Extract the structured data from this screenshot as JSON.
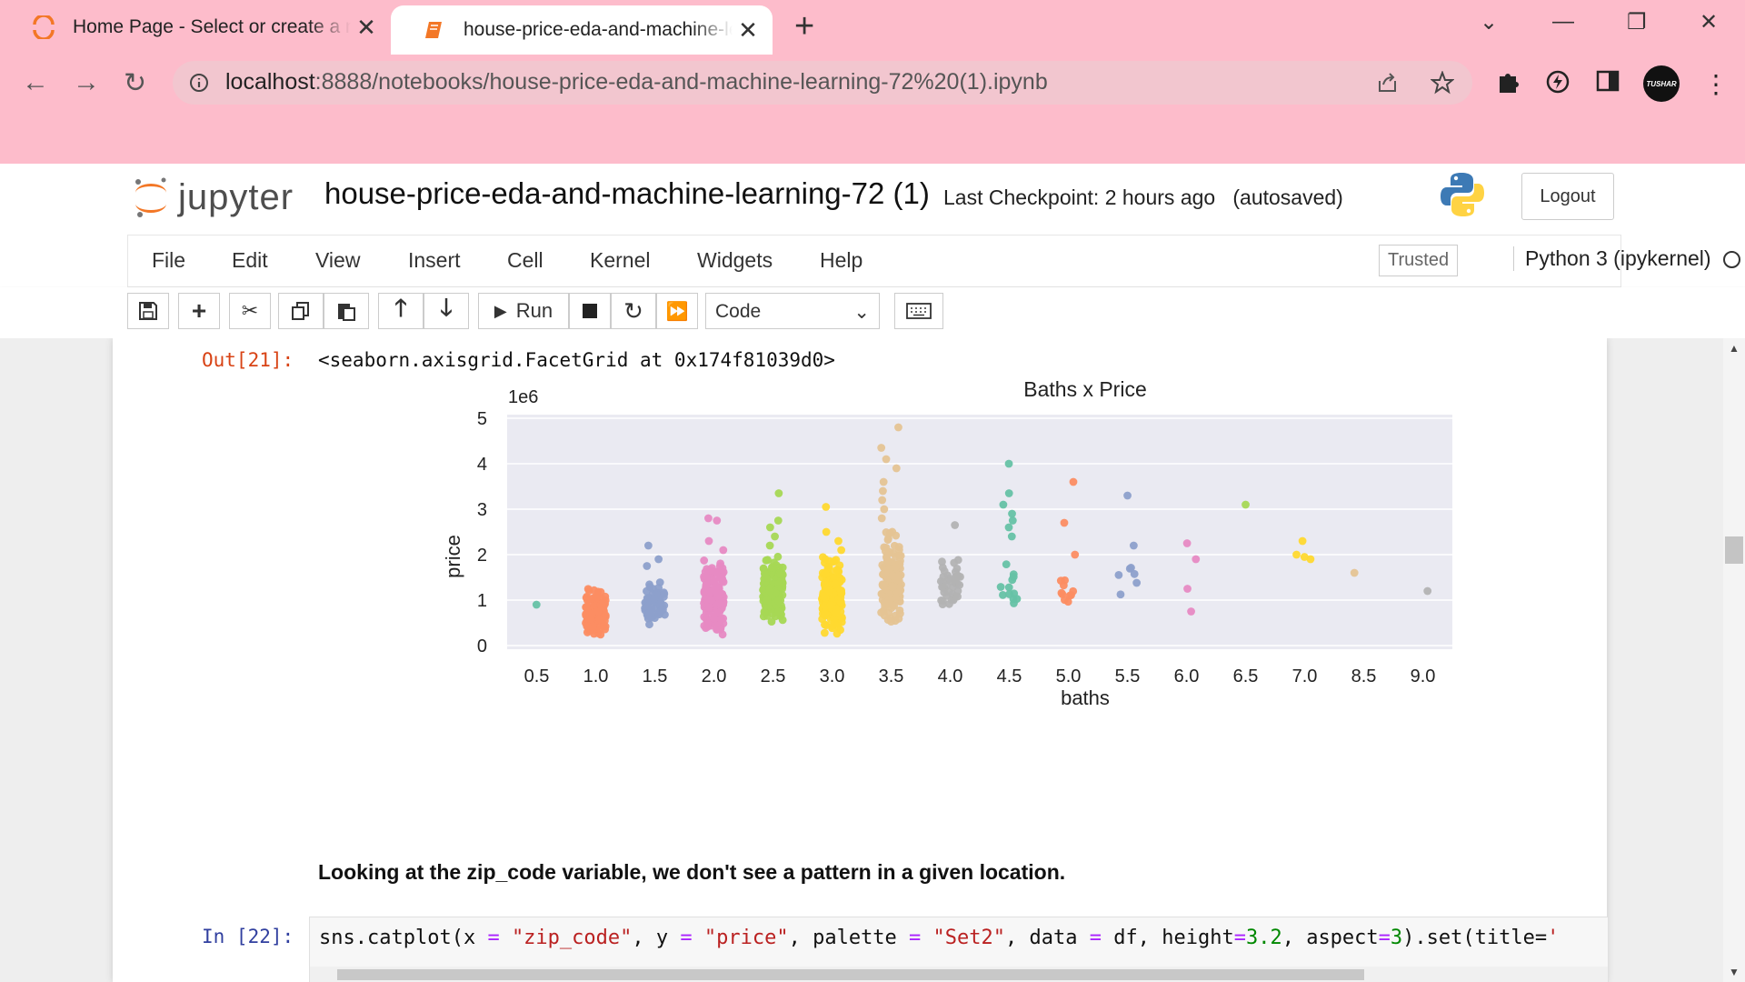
{
  "browser": {
    "tabs": [
      {
        "title": "Home Page - Select or create a n",
        "active": false
      },
      {
        "title": "house-price-eda-and-machine-le",
        "active": true
      }
    ],
    "url_host": "localhost",
    "url_rest": ":8888/notebooks/house-price-eda-and-machine-learning-72%20(1).ipynb",
    "profile_label": "TUSHAR"
  },
  "jupyter": {
    "wordmark": "jupyter",
    "notebook_name": "house-price-eda-and-machine-learning-72 (1)",
    "checkpoint": "Last Checkpoint: 2 hours ago",
    "autosave": "(autosaved)",
    "logout": "Logout",
    "menu": [
      "File",
      "Edit",
      "View",
      "Insert",
      "Cell",
      "Kernel",
      "Widgets",
      "Help"
    ],
    "trusted": "Trusted",
    "kernel": "Python 3 (ipykernel)",
    "run_label": "Run",
    "cell_type": "Code"
  },
  "cells": {
    "out_prompt": "Out[21]:",
    "out_text": "<seaborn.axisgrid.FacetGrid at 0x174f81039d0>",
    "markdown": "Looking at the zip_code variable, we don't see a pattern in a given location.",
    "in_prompt": "In [22]:",
    "code_parts": [
      {
        "t": "sns.catplot(x ",
        "c": ""
      },
      {
        "t": "=",
        "c": "op"
      },
      {
        "t": " ",
        "c": ""
      },
      {
        "t": "\"zip_code\"",
        "c": "str"
      },
      {
        "t": ", y ",
        "c": ""
      },
      {
        "t": "=",
        "c": "op"
      },
      {
        "t": " ",
        "c": ""
      },
      {
        "t": "\"price\"",
        "c": "str"
      },
      {
        "t": ", palette ",
        "c": ""
      },
      {
        "t": "=",
        "c": "op"
      },
      {
        "t": " ",
        "c": ""
      },
      {
        "t": "\"Set2\"",
        "c": "str"
      },
      {
        "t": ", data ",
        "c": ""
      },
      {
        "t": "=",
        "c": "op"
      },
      {
        "t": " df, height",
        "c": ""
      },
      {
        "t": "=",
        "c": "op"
      },
      {
        "t": "3.2",
        "c": "num"
      },
      {
        "t": ", aspect",
        "c": ""
      },
      {
        "t": "=",
        "c": "op"
      },
      {
        "t": "3",
        "c": "num"
      },
      {
        "t": ").set(title=",
        "c": ""
      },
      {
        "t": "'",
        "c": "str"
      }
    ]
  },
  "chart_data": {
    "type": "scatter",
    "title": "Baths x Price",
    "xlabel": "baths",
    "ylabel": "price",
    "y_offset_label": "1e6",
    "ylim": [
      0,
      5
    ],
    "yticks": [
      "0",
      "1",
      "2",
      "3",
      "4",
      "5"
    ],
    "grid": true,
    "categories": [
      "0.5",
      "1.0",
      "1.5",
      "2.0",
      "2.5",
      "3.0",
      "3.5",
      "4.0",
      "4.5",
      "5.0",
      "5.5",
      "6.0",
      "6.5",
      "7.0",
      "8.5",
      "9.0"
    ],
    "colors": [
      "#66c2a5",
      "#fc8d62",
      "#8da0cb",
      "#e78ac3",
      "#a6d854",
      "#ffd92f",
      "#e5c494",
      "#b3b3b3",
      "#66c2a5",
      "#fc8d62",
      "#8da0cb",
      "#e78ac3",
      "#a6d854",
      "#ffd92f",
      "#e5c494",
      "#b3b3b3"
    ],
    "series": [
      {
        "category": "0.5",
        "min": 0.9,
        "max": 0.9,
        "n": 0,
        "extras": [
          0.9
        ]
      },
      {
        "category": "1.0",
        "min": 0.2,
        "max": 1.3,
        "n": 120,
        "extras": []
      },
      {
        "category": "1.5",
        "min": 0.45,
        "max": 1.5,
        "n": 60,
        "extras": [
          1.75,
          1.9,
          2.2
        ]
      },
      {
        "category": "2.0",
        "min": 0.2,
        "max": 2.0,
        "n": 150,
        "extras": [
          2.1,
          2.3,
          2.75,
          2.8
        ]
      },
      {
        "category": "2.5",
        "min": 0.5,
        "max": 2.0,
        "n": 160,
        "extras": [
          2.2,
          2.4,
          2.6,
          2.75,
          3.35
        ]
      },
      {
        "category": "3.0",
        "min": 0.25,
        "max": 2.0,
        "n": 170,
        "extras": [
          2.1,
          2.3,
          2.5,
          3.05
        ]
      },
      {
        "category": "3.5",
        "min": 0.4,
        "max": 2.6,
        "n": 140,
        "extras": [
          2.8,
          3.0,
          3.2,
          3.4,
          3.6,
          3.9,
          4.1,
          4.35,
          4.8
        ]
      },
      {
        "category": "4.0",
        "min": 0.7,
        "max": 2.1,
        "n": 40,
        "extras": [
          2.65
        ]
      },
      {
        "category": "4.5",
        "min": 0.55,
        "max": 2.0,
        "n": 12,
        "extras": [
          2.4,
          2.6,
          2.75,
          2.9,
          3.1,
          3.35,
          4.0
        ]
      },
      {
        "category": "5.0",
        "min": 0.75,
        "max": 1.5,
        "n": 10,
        "extras": [
          2.0,
          2.7,
          3.6
        ]
      },
      {
        "category": "5.5",
        "min": 0.65,
        "max": 1.8,
        "n": 6,
        "extras": [
          2.2,
          3.3
        ]
      },
      {
        "category": "6.0",
        "min": 0.75,
        "max": 2.25,
        "n": 0,
        "extras": [
          0.75,
          1.25,
          1.9,
          2.25
        ]
      },
      {
        "category": "6.5",
        "min": 3.1,
        "max": 3.1,
        "n": 0,
        "extras": [
          3.1
        ]
      },
      {
        "category": "7.0",
        "min": 1.9,
        "max": 2.3,
        "n": 0,
        "extras": [
          1.9,
          1.95,
          2.0,
          2.3
        ]
      },
      {
        "category": "8.5",
        "min": 1.6,
        "max": 1.6,
        "n": 0,
        "extras": [
          1.6
        ]
      },
      {
        "category": "9.0",
        "min": 1.2,
        "max": 1.2,
        "n": 0,
        "extras": [
          1.2
        ]
      }
    ]
  }
}
